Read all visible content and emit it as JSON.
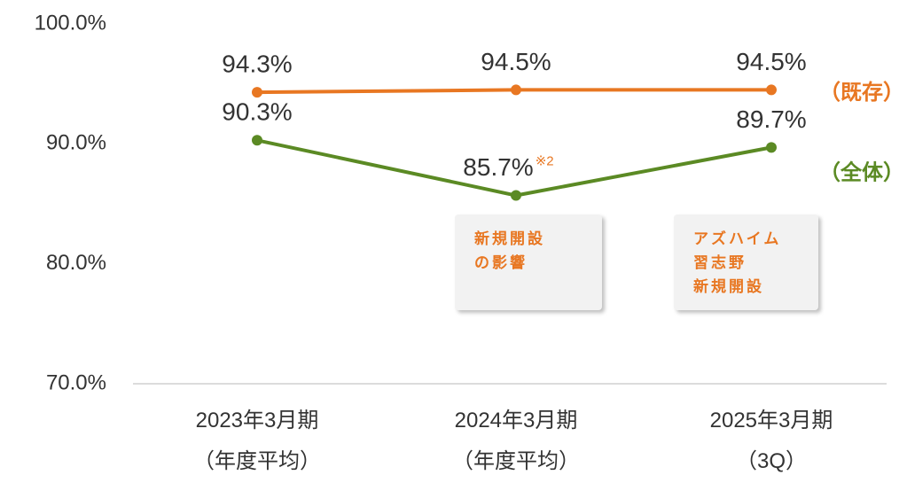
{
  "chart_data": {
    "type": "line",
    "categories": [
      "2023年3月期\n（年度平均）",
      "2024年3月期\n（年度平均）",
      "2025年3月期\n（3Q）"
    ],
    "series": [
      {
        "name": "（既存）",
        "color": "#e87722",
        "values": [
          94.3,
          94.5,
          94.5
        ],
        "value_labels": [
          "94.3%",
          "94.5%",
          "94.5%"
        ]
      },
      {
        "name": "（全体）",
        "color": "#5b8a24",
        "values": [
          90.3,
          85.7,
          89.7
        ],
        "value_labels": [
          "90.3%",
          "85.7%",
          "89.7%"
        ]
      }
    ],
    "ylim": [
      70,
      100
    ],
    "yticks": [
      {
        "value": 70,
        "label": "70.0%"
      },
      {
        "value": 80,
        "label": "80.0%"
      },
      {
        "value": 90,
        "label": "90.0%"
      },
      {
        "value": 100,
        "label": "100.0%"
      }
    ],
    "grid": false,
    "annotations": [
      {
        "text": "※2"
      },
      {
        "text": "新規開設\nの影響"
      },
      {
        "text": "アズハイム\n習志野\n新規開設"
      }
    ]
  }
}
